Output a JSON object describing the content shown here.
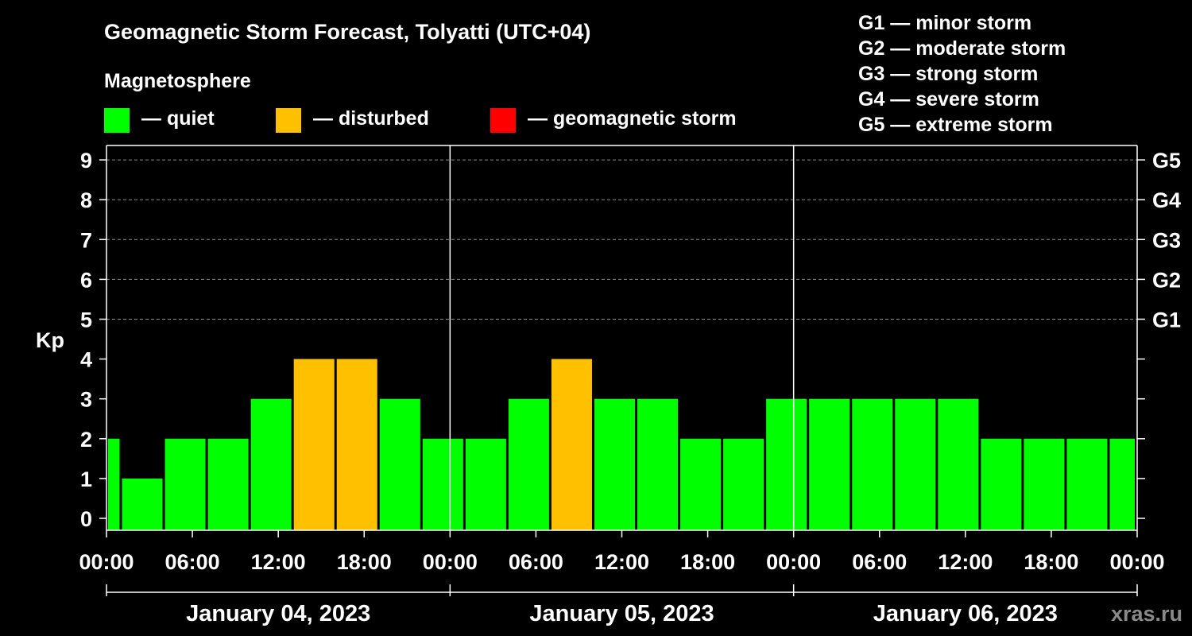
{
  "chart_data": {
    "type": "bar",
    "title": "Geomagnetic Storm Forecast, Tolyatti (UTC+04)",
    "legend": {
      "heading": "Magnetosphere",
      "items": [
        {
          "label": "— quiet",
          "color": "#00ff00"
        },
        {
          "label": "— disturbed",
          "color": "#ffc000"
        },
        {
          "label": "— geomagnetic storm",
          "color": "#ff0000"
        }
      ]
    },
    "storm_scale": [
      "G1 — minor storm",
      "G2 — moderate storm",
      "G3 — strong storm",
      "G4 — severe storm",
      "G5 — extreme storm"
    ],
    "ylabel": "Kp",
    "ylim": [
      0,
      9
    ],
    "y_ticks": [
      "0",
      "1",
      "2",
      "3",
      "4",
      "5",
      "6",
      "7",
      "8",
      "9"
    ],
    "right_tick_values": [
      5,
      6,
      7,
      8,
      9
    ],
    "right_tick_labels": [
      "G1",
      "G2",
      "G3",
      "G4",
      "G5"
    ],
    "x_range_hours": [
      0,
      72
    ],
    "x_tick_hours": [
      0,
      6,
      12,
      18,
      24,
      30,
      36,
      42,
      48,
      54,
      60,
      66,
      72
    ],
    "x_tick_labels": [
      "00:00",
      "06:00",
      "12:00",
      "18:00",
      "00:00",
      "06:00",
      "12:00",
      "18:00",
      "00:00",
      "06:00",
      "12:00",
      "18:00",
      "00:00"
    ],
    "day_boundaries_hours": [
      24,
      48
    ],
    "days": [
      "January 04, 2023",
      "January 05, 2023",
      "January 06, 2023"
    ],
    "bars": [
      {
        "start": 0,
        "end": 1,
        "value": 2,
        "status": "quiet"
      },
      {
        "start": 1,
        "end": 4,
        "value": 1,
        "status": "quiet"
      },
      {
        "start": 4,
        "end": 7,
        "value": 2,
        "status": "quiet"
      },
      {
        "start": 7,
        "end": 10,
        "value": 2,
        "status": "quiet"
      },
      {
        "start": 10,
        "end": 13,
        "value": 3,
        "status": "quiet"
      },
      {
        "start": 13,
        "end": 16,
        "value": 4,
        "status": "disturbed"
      },
      {
        "start": 16,
        "end": 19,
        "value": 4,
        "status": "disturbed"
      },
      {
        "start": 19,
        "end": 22,
        "value": 3,
        "status": "quiet"
      },
      {
        "start": 22,
        "end": 25,
        "value": 2,
        "status": "quiet"
      },
      {
        "start": 25,
        "end": 28,
        "value": 2,
        "status": "quiet"
      },
      {
        "start": 28,
        "end": 31,
        "value": 3,
        "status": "quiet"
      },
      {
        "start": 31,
        "end": 34,
        "value": 4,
        "status": "disturbed"
      },
      {
        "start": 34,
        "end": 37,
        "value": 3,
        "status": "quiet"
      },
      {
        "start": 37,
        "end": 40,
        "value": 3,
        "status": "quiet"
      },
      {
        "start": 40,
        "end": 43,
        "value": 2,
        "status": "quiet"
      },
      {
        "start": 43,
        "end": 46,
        "value": 2,
        "status": "quiet"
      },
      {
        "start": 46,
        "end": 49,
        "value": 3,
        "status": "quiet"
      },
      {
        "start": 49,
        "end": 52,
        "value": 3,
        "status": "quiet"
      },
      {
        "start": 52,
        "end": 55,
        "value": 3,
        "status": "quiet"
      },
      {
        "start": 55,
        "end": 58,
        "value": 3,
        "status": "quiet"
      },
      {
        "start": 58,
        "end": 61,
        "value": 3,
        "status": "quiet"
      },
      {
        "start": 61,
        "end": 64,
        "value": 2,
        "status": "quiet"
      },
      {
        "start": 64,
        "end": 67,
        "value": 2,
        "status": "quiet"
      },
      {
        "start": 67,
        "end": 70,
        "value": 2,
        "status": "quiet"
      },
      {
        "start": 70,
        "end": 72,
        "value": 2,
        "status": "quiet"
      }
    ],
    "grid": "dashed at G levels",
    "watermark": "xras.ru"
  }
}
